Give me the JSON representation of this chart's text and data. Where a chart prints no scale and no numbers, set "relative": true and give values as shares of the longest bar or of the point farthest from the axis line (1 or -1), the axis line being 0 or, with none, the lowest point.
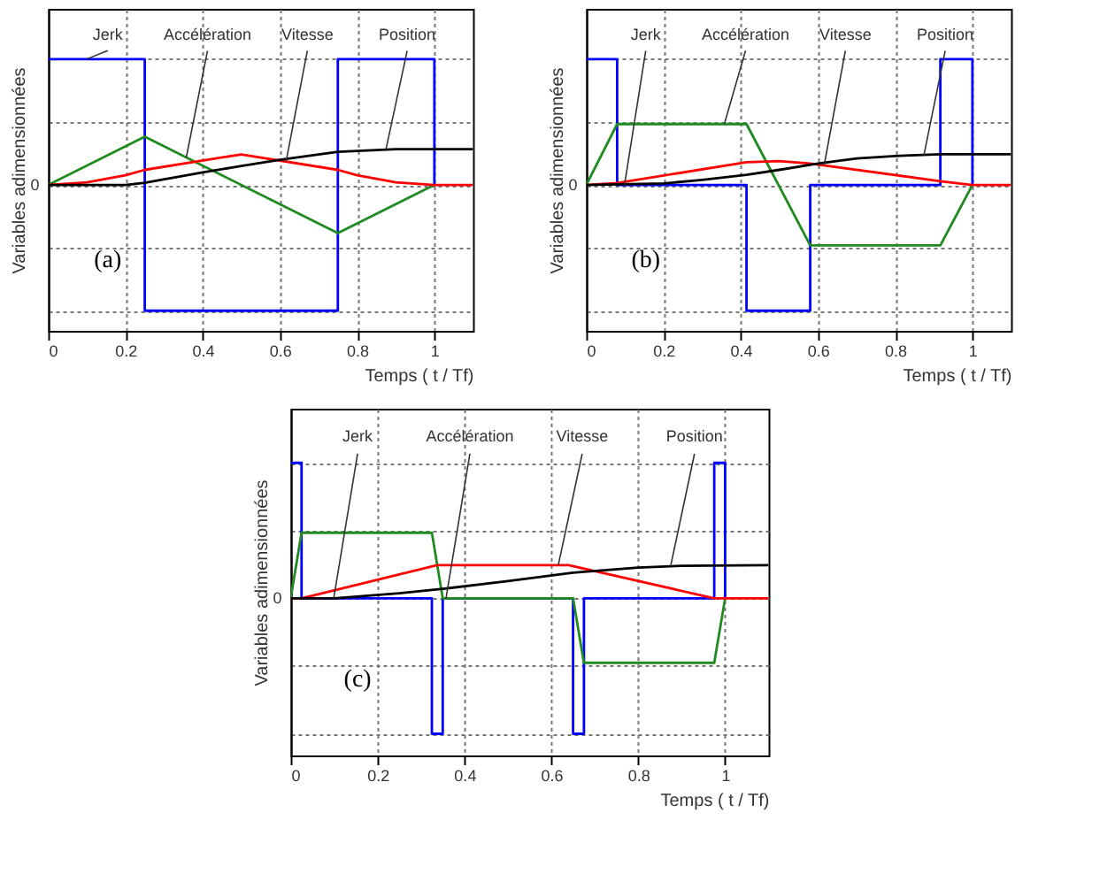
{
  "chart_data": [
    {
      "type": "line",
      "relative": true,
      "xlabel": "Temps  ( t / Tf)",
      "ylabel": "Variables adimensionnées",
      "xlim": [
        0,
        1.1
      ],
      "xticks": [
        0,
        0.2,
        0.4,
        0.6,
        0.8,
        1
      ],
      "grid": true,
      "line_style": "solid",
      "marker": "none",
      "series": [
        {
          "name": "Jerk",
          "color": "#0000ff",
          "x": [
            0,
            0.25,
            0.25,
            0.75,
            0.75,
            1,
            1
          ],
          "values": [
            1,
            1,
            -1,
            -1,
            1,
            1,
            0
          ]
        },
        {
          "name": "Accélération",
          "color": "#1f8a1f",
          "x": [
            0,
            0.25,
            0.75,
            1
          ],
          "values": [
            0,
            0.383,
            -0.383,
            0
          ]
        },
        {
          "name": "Vitesse",
          "color": "#ff0000",
          "x": [
            0,
            0.1,
            0.2,
            0.25,
            0.5,
            0.75,
            0.8,
            0.9,
            1,
            1.1
          ],
          "values": [
            0,
            0.02,
            0.077,
            0.12,
            0.243,
            0.12,
            0.077,
            0.02,
            0,
            0
          ]
        },
        {
          "name": "Position",
          "color": "#000000",
          "x": [
            0,
            0.2,
            0.25,
            0.4,
            0.5,
            0.6,
            0.75,
            0.9,
            1,
            1.1
          ],
          "values": [
            0,
            0,
            0.017,
            0.1,
            0.15,
            0.2,
            0.264,
            0.285,
            0.285,
            0.285
          ]
        }
      ],
      "annotations": [
        "0",
        "(a)"
      ]
    },
    {
      "type": "line",
      "relative": true,
      "xlabel": "Temps  ( t / Tf)",
      "ylabel": "Variables adimensionnées",
      "xlim": [
        0,
        1.1
      ],
      "xticks": [
        0,
        0.2,
        0.4,
        0.6,
        0.8,
        1
      ],
      "grid": true,
      "line_style": "solid",
      "marker": "none",
      "series": [
        {
          "name": "Jerk",
          "color": "#0000ff",
          "x": [
            0,
            0.08,
            0.08,
            0.415,
            0.415,
            0.58,
            0.58,
            0.917,
            0.917,
            1,
            1
          ],
          "values": [
            1,
            1,
            0,
            0,
            -1,
            -1,
            0,
            0,
            1,
            1,
            0
          ]
        },
        {
          "name": "Accélération",
          "color": "#1f8a1f",
          "x": [
            0,
            0.08,
            0.415,
            0.58,
            0.917,
            1
          ],
          "values": [
            0,
            0.484,
            0.484,
            -0.48,
            -0.48,
            0
          ]
        },
        {
          "name": "Vitesse",
          "color": "#ff0000",
          "x": [
            0,
            0.08,
            0.415,
            0.5,
            0.58,
            0.917,
            1,
            1.1
          ],
          "values": [
            0,
            0.016,
            0.18,
            0.19,
            0.17,
            0.03,
            0,
            0
          ]
        },
        {
          "name": "Position",
          "color": "#000000",
          "x": [
            0,
            0.2,
            0.3,
            0.415,
            0.5,
            0.6,
            0.7,
            0.8,
            0.917,
            1.1
          ],
          "values": [
            0,
            0.012,
            0.04,
            0.08,
            0.12,
            0.17,
            0.21,
            0.23,
            0.244,
            0.244
          ]
        }
      ],
      "annotations": [
        "0",
        "(b)"
      ]
    },
    {
      "type": "line",
      "relative": true,
      "xlabel": "Temps  ( t / Tf)",
      "ylabel": "Variables adimensionnées",
      "xlim": [
        0,
        1.1
      ],
      "xticks": [
        0,
        0.2,
        0.4,
        0.6,
        0.8,
        1
      ],
      "grid": true,
      "line_style": "solid",
      "marker": "none",
      "series": [
        {
          "name": "Jerk",
          "color": "#0000ff",
          "x": [
            0,
            0.025,
            0.025,
            0.325,
            0.325,
            0.35,
            0.35,
            0.65,
            0.65,
            0.675,
            0.675,
            0.975,
            0.975,
            1,
            1
          ],
          "values": [
            1,
            1,
            0,
            0,
            -1,
            -1,
            0,
            0,
            -1,
            -1,
            0,
            0,
            1,
            1,
            0
          ]
        },
        {
          "name": "Accélération",
          "color": "#1f8a1f",
          "x": [
            0,
            0.025,
            0.325,
            0.35,
            0.65,
            0.675,
            0.975,
            1
          ],
          "values": [
            0,
            0.484,
            0.484,
            0,
            0,
            -0.476,
            -0.476,
            0
          ]
        },
        {
          "name": "Vitesse",
          "color": "#ff0000",
          "x": [
            0,
            0.025,
            0.337,
            0.64,
            0.975,
            1.1
          ],
          "values": [
            0,
            0,
            0.245,
            0.245,
            0,
            0
          ]
        },
        {
          "name": "Position",
          "color": "#000000",
          "x": [
            0,
            0.1,
            0.25,
            0.35,
            0.5,
            0.65,
            0.8,
            0.9,
            1.1
          ],
          "values": [
            0,
            0,
            0.037,
            0.07,
            0.128,
            0.19,
            0.227,
            0.24,
            0.245
          ]
        }
      ],
      "annotations": [
        "0",
        "(c)"
      ]
    }
  ]
}
